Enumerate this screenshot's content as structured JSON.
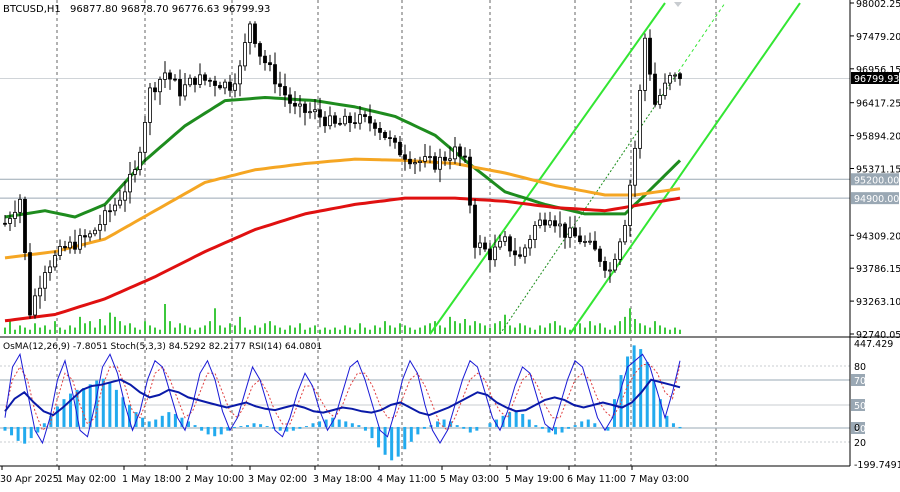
{
  "header": {
    "symbol": "BTCUSD,H1",
    "ohlc": "96877.80 96878.70 96776.63 96799.93"
  },
  "main": {
    "price_ticks": [
      "98002.25",
      "97479.20",
      "96956.15",
      "96417.25",
      "95894.20",
      "95371.15",
      "94309.20",
      "93786.15",
      "93263.10",
      "92740.05"
    ],
    "current_price": "96799.93",
    "level_tags": [
      "95200.00",
      "94900.00"
    ],
    "colors": {
      "candle": "#000000",
      "volume": "#3cc83c",
      "ma_green": "#1e8c1e",
      "ma_orange": "#f5a623",
      "ma_red": "#e01010",
      "channel": "#33e633",
      "hline": "#9aa8b4"
    }
  },
  "indicator": {
    "label": "OsMA(12,26,9) -7.8051  Stoch(5,3,3) 84.5292 82.2177  RSI(14) 64.0801",
    "ticks": [
      "447.429",
      "80",
      "70",
      "50",
      "30",
      "20",
      "0",
      "-199.7491"
    ],
    "colors": {
      "histogram": "#22aaee",
      "stoch_main": "#1a1ad6",
      "stoch_signal": "#e04040",
      "rsi": "#0a1aa8"
    }
  },
  "time_axis": {
    "labels": [
      "30 Apr 2025",
      "1 May 02:00",
      "1 May 18:00",
      "2 May 10:00",
      "3 May 02:00",
      "3 May 18:00",
      "4 May 11:00",
      "5 May 03:00",
      "5 May 19:00",
      "6 May 11:00",
      "7 May 03:00"
    ]
  },
  "chart_data": [
    {
      "type": "candlestick",
      "series_label": "BTCUSD,H1",
      "ylim": [
        92740.05,
        98002.25
      ],
      "y_ticks": [
        92740.05,
        93263.1,
        93786.15,
        94309.2,
        95371.15,
        95894.2,
        96417.25,
        96956.15,
        97479.2,
        98002.25
      ],
      "horizontal_levels": [
        95200.0,
        94900.0
      ],
      "last_price": 96799.93,
      "last_bar": {
        "open": 96877.8,
        "high": 96878.7,
        "low": 96776.63,
        "close": 96799.93
      },
      "x_labels": [
        "30 Apr 2025",
        "1 May 02:00",
        "1 May 18:00",
        "2 May 10:00",
        "3 May 02:00",
        "3 May 18:00",
        "4 May 11:00",
        "5 May 03:00",
        "5 May 19:00",
        "6 May 11:00",
        "7 May 03:00"
      ],
      "close_path": [
        [
          0,
          94500
        ],
        [
          3,
          94900
        ],
        [
          5,
          93100
        ],
        [
          8,
          93800
        ],
        [
          12,
          94100
        ],
        [
          17,
          94300
        ],
        [
          22,
          94800
        ],
        [
          26,
          95300
        ],
        [
          29,
          96600
        ],
        [
          32,
          96900
        ],
        [
          35,
          96600
        ],
        [
          38,
          96800
        ],
        [
          42,
          96750
        ],
        [
          45,
          96700
        ],
        [
          47,
          96950
        ],
        [
          49,
          97700
        ],
        [
          51,
          97200
        ],
        [
          54,
          96800
        ],
        [
          58,
          96300
        ],
        [
          62,
          96250
        ],
        [
          66,
          96050
        ],
        [
          70,
          96150
        ],
        [
          74,
          96100
        ],
        [
          78,
          95700
        ],
        [
          82,
          95500
        ],
        [
          86,
          95450
        ],
        [
          90,
          95650
        ],
        [
          92,
          95450
        ],
        [
          94,
          94200
        ],
        [
          97,
          94000
        ],
        [
          100,
          94200
        ],
        [
          103,
          93950
        ],
        [
          106,
          94450
        ],
        [
          109,
          94650
        ],
        [
          112,
          94350
        ],
        [
          115,
          94250
        ],
        [
          118,
          94050
        ],
        [
          121,
          93750
        ],
        [
          124,
          94550
        ],
        [
          126,
          95700
        ],
        [
          128,
          97450
        ],
        [
          130,
          96400
        ],
        [
          133,
          96800
        ],
        [
          135,
          96800
        ]
      ],
      "moving_averages": [
        {
          "color": "#1e8c1e",
          "points": [
            [
              0,
              94600
            ],
            [
              8,
              94700
            ],
            [
              14,
              94600
            ],
            [
              20,
              94800
            ],
            [
              28,
              95500
            ],
            [
              36,
              96050
            ],
            [
              44,
              96450
            ],
            [
              52,
              96500
            ],
            [
              62,
              96450
            ],
            [
              70,
              96350
            ],
            [
              78,
              96200
            ],
            [
              86,
              95900
            ],
            [
              92,
              95500
            ],
            [
              100,
              95000
            ],
            [
              108,
              94800
            ],
            [
              116,
              94650
            ],
            [
              124,
              94650
            ],
            [
              128,
              94950
            ],
            [
              135,
              95500
            ]
          ]
        },
        {
          "color": "#f5a623",
          "points": [
            [
              0,
              93950
            ],
            [
              10,
              94050
            ],
            [
              20,
              94250
            ],
            [
              30,
              94700
            ],
            [
              40,
              95150
            ],
            [
              50,
              95350
            ],
            [
              60,
              95450
            ],
            [
              70,
              95520
            ],
            [
              80,
              95500
            ],
            [
              90,
              95450
            ],
            [
              100,
              95300
            ],
            [
              110,
              95100
            ],
            [
              120,
              94950
            ],
            [
              126,
              94950
            ],
            [
              135,
              95050
            ]
          ]
        },
        {
          "color": "#e01010",
          "points": [
            [
              0,
              92950
            ],
            [
              10,
              93050
            ],
            [
              20,
              93300
            ],
            [
              30,
              93650
            ],
            [
              40,
              94050
            ],
            [
              50,
              94400
            ],
            [
              60,
              94650
            ],
            [
              70,
              94800
            ],
            [
              80,
              94900
            ],
            [
              90,
              94900
            ],
            [
              100,
              94850
            ],
            [
              110,
              94750
            ],
            [
              120,
              94700
            ],
            [
              135,
              94900
            ]
          ]
        }
      ],
      "channel_lines": [
        {
          "from": [
            85,
            92740
          ],
          "to": [
            132,
            98002
          ]
        },
        {
          "from": [
            113,
            92740
          ],
          "to": [
            159,
            98002
          ]
        },
        {
          "from": [
            99,
            92740
          ],
          "to": [
            144,
            98002
          ],
          "dashed_after": 134
        }
      ],
      "volume": [
        3,
        6,
        2,
        4,
        3,
        2,
        5,
        3,
        4,
        2,
        6,
        3,
        2,
        4,
        3,
        8,
        5,
        6,
        3,
        7,
        4,
        10,
        8,
        6,
        4,
        5,
        3,
        2,
        6,
        4,
        3,
        2,
        14,
        6,
        3,
        5,
        4,
        3,
        2,
        3,
        4,
        6,
        12,
        4,
        3,
        5,
        4,
        8,
        3,
        2,
        4,
        3,
        5,
        6,
        4,
        3,
        2,
        4,
        3,
        5,
        2,
        3,
        4,
        2,
        3,
        2,
        3,
        2,
        4,
        3,
        2,
        5,
        3,
        2,
        4,
        3,
        6,
        4,
        3,
        5,
        4,
        3,
        2,
        3,
        4,
        5,
        6,
        4,
        3,
        8,
        6,
        5,
        7,
        4,
        6,
        5,
        4,
        3,
        5,
        6,
        9,
        4,
        3,
        5,
        4,
        3,
        2,
        4,
        3,
        5,
        6,
        4,
        3,
        2,
        4,
        5,
        3,
        6,
        4,
        5,
        3,
        2,
        4,
        6,
        8,
        12,
        7,
        5,
        4,
        3,
        6,
        4,
        3,
        2,
        3,
        2
      ]
    },
    {
      "type": "bar",
      "series_label": "OsMA(12,26,9) -7.8051  Stoch(5,3,3) 84.5292 82.2177  RSI(14) 64.0801",
      "ylim": [
        -199.7491,
        447.429
      ],
      "reference_levels": [
        80,
        70,
        50,
        30,
        20
      ],
      "osma_values": [
        -20,
        -45,
        -75,
        -90,
        -60,
        -30,
        20,
        60,
        110,
        150,
        180,
        200,
        210,
        230,
        250,
        260,
        240,
        200,
        160,
        120,
        80,
        50,
        30,
        40,
        60,
        80,
        70,
        50,
        30,
        10,
        -20,
        -40,
        -50,
        -40,
        -20,
        -5,
        5,
        10,
        20,
        15,
        5,
        -10,
        -20,
        -25,
        -20,
        -10,
        5,
        20,
        30,
        40,
        50,
        40,
        30,
        20,
        10,
        -20,
        -60,
        -110,
        -150,
        -180,
        -160,
        -120,
        -80,
        -40,
        -10,
        10,
        30,
        40,
        30,
        10,
        -10,
        -30,
        -20,
        0,
        20,
        40,
        60,
        80,
        90,
        70,
        40,
        10,
        -10,
        -30,
        -40,
        -30,
        -10,
        10,
        30,
        40,
        20,
        0,
        -20,
        150,
        280,
        380,
        440,
        420,
        350,
        250,
        150,
        60,
        20,
        -8
      ],
      "stoch_main": [
        40,
        80,
        90,
        60,
        30,
        20,
        40,
        70,
        85,
        60,
        30,
        25,
        50,
        80,
        90,
        75,
        50,
        30,
        45,
        70,
        85,
        80,
        60,
        40,
        30,
        50,
        75,
        85,
        70,
        45,
        30,
        40,
        60,
        80,
        70,
        50,
        30,
        25,
        40,
        60,
        75,
        65,
        45,
        30,
        40,
        60,
        80,
        85,
        70,
        50,
        30,
        25,
        45,
        70,
        85,
        75,
        50,
        30,
        20,
        30,
        50,
        70,
        85,
        80,
        60,
        40,
        30,
        45,
        65,
        80,
        75,
        55,
        35,
        30,
        50,
        70,
        85,
        80,
        60,
        40,
        30,
        40,
        60,
        80,
        85,
        90,
        80,
        60,
        40,
        60,
        85
      ],
      "stoch_signal": [
        45,
        70,
        80,
        70,
        45,
        30,
        35,
        55,
        75,
        70,
        50,
        35,
        40,
        65,
        80,
        80,
        65,
        45,
        40,
        55,
        75,
        80,
        70,
        55,
        40,
        45,
        60,
        75,
        75,
        60,
        45,
        40,
        50,
        65,
        70,
        60,
        45,
        35,
        35,
        50,
        65,
        65,
        55,
        45,
        40,
        50,
        65,
        75,
        75,
        65,
        50,
        40,
        40,
        55,
        70,
        75,
        65,
        50,
        35,
        30,
        40,
        55,
        70,
        75,
        70,
        55,
        45,
        40,
        55,
        70,
        75,
        65,
        50,
        40,
        40,
        55,
        70,
        75,
        70,
        55,
        45,
        40,
        50,
        65,
        75,
        82,
        82,
        75,
        60,
        55,
        82
      ],
      "rsi": [
        45,
        55,
        60,
        52,
        45,
        42,
        48,
        55,
        62,
        65,
        66,
        68,
        70,
        66,
        60,
        56,
        58,
        62,
        60,
        56,
        54,
        52,
        50,
        48,
        50,
        52,
        49,
        47,
        46,
        48,
        50,
        48,
        45,
        44,
        46,
        48,
        47,
        45,
        44,
        46,
        50,
        52,
        48,
        44,
        42,
        45,
        48,
        52,
        56,
        60,
        58,
        52,
        48,
        45,
        46,
        50,
        54,
        56,
        54,
        50,
        48,
        50,
        52,
        50,
        48,
        52,
        60,
        70,
        68,
        66,
        64
      ]
    }
  ]
}
